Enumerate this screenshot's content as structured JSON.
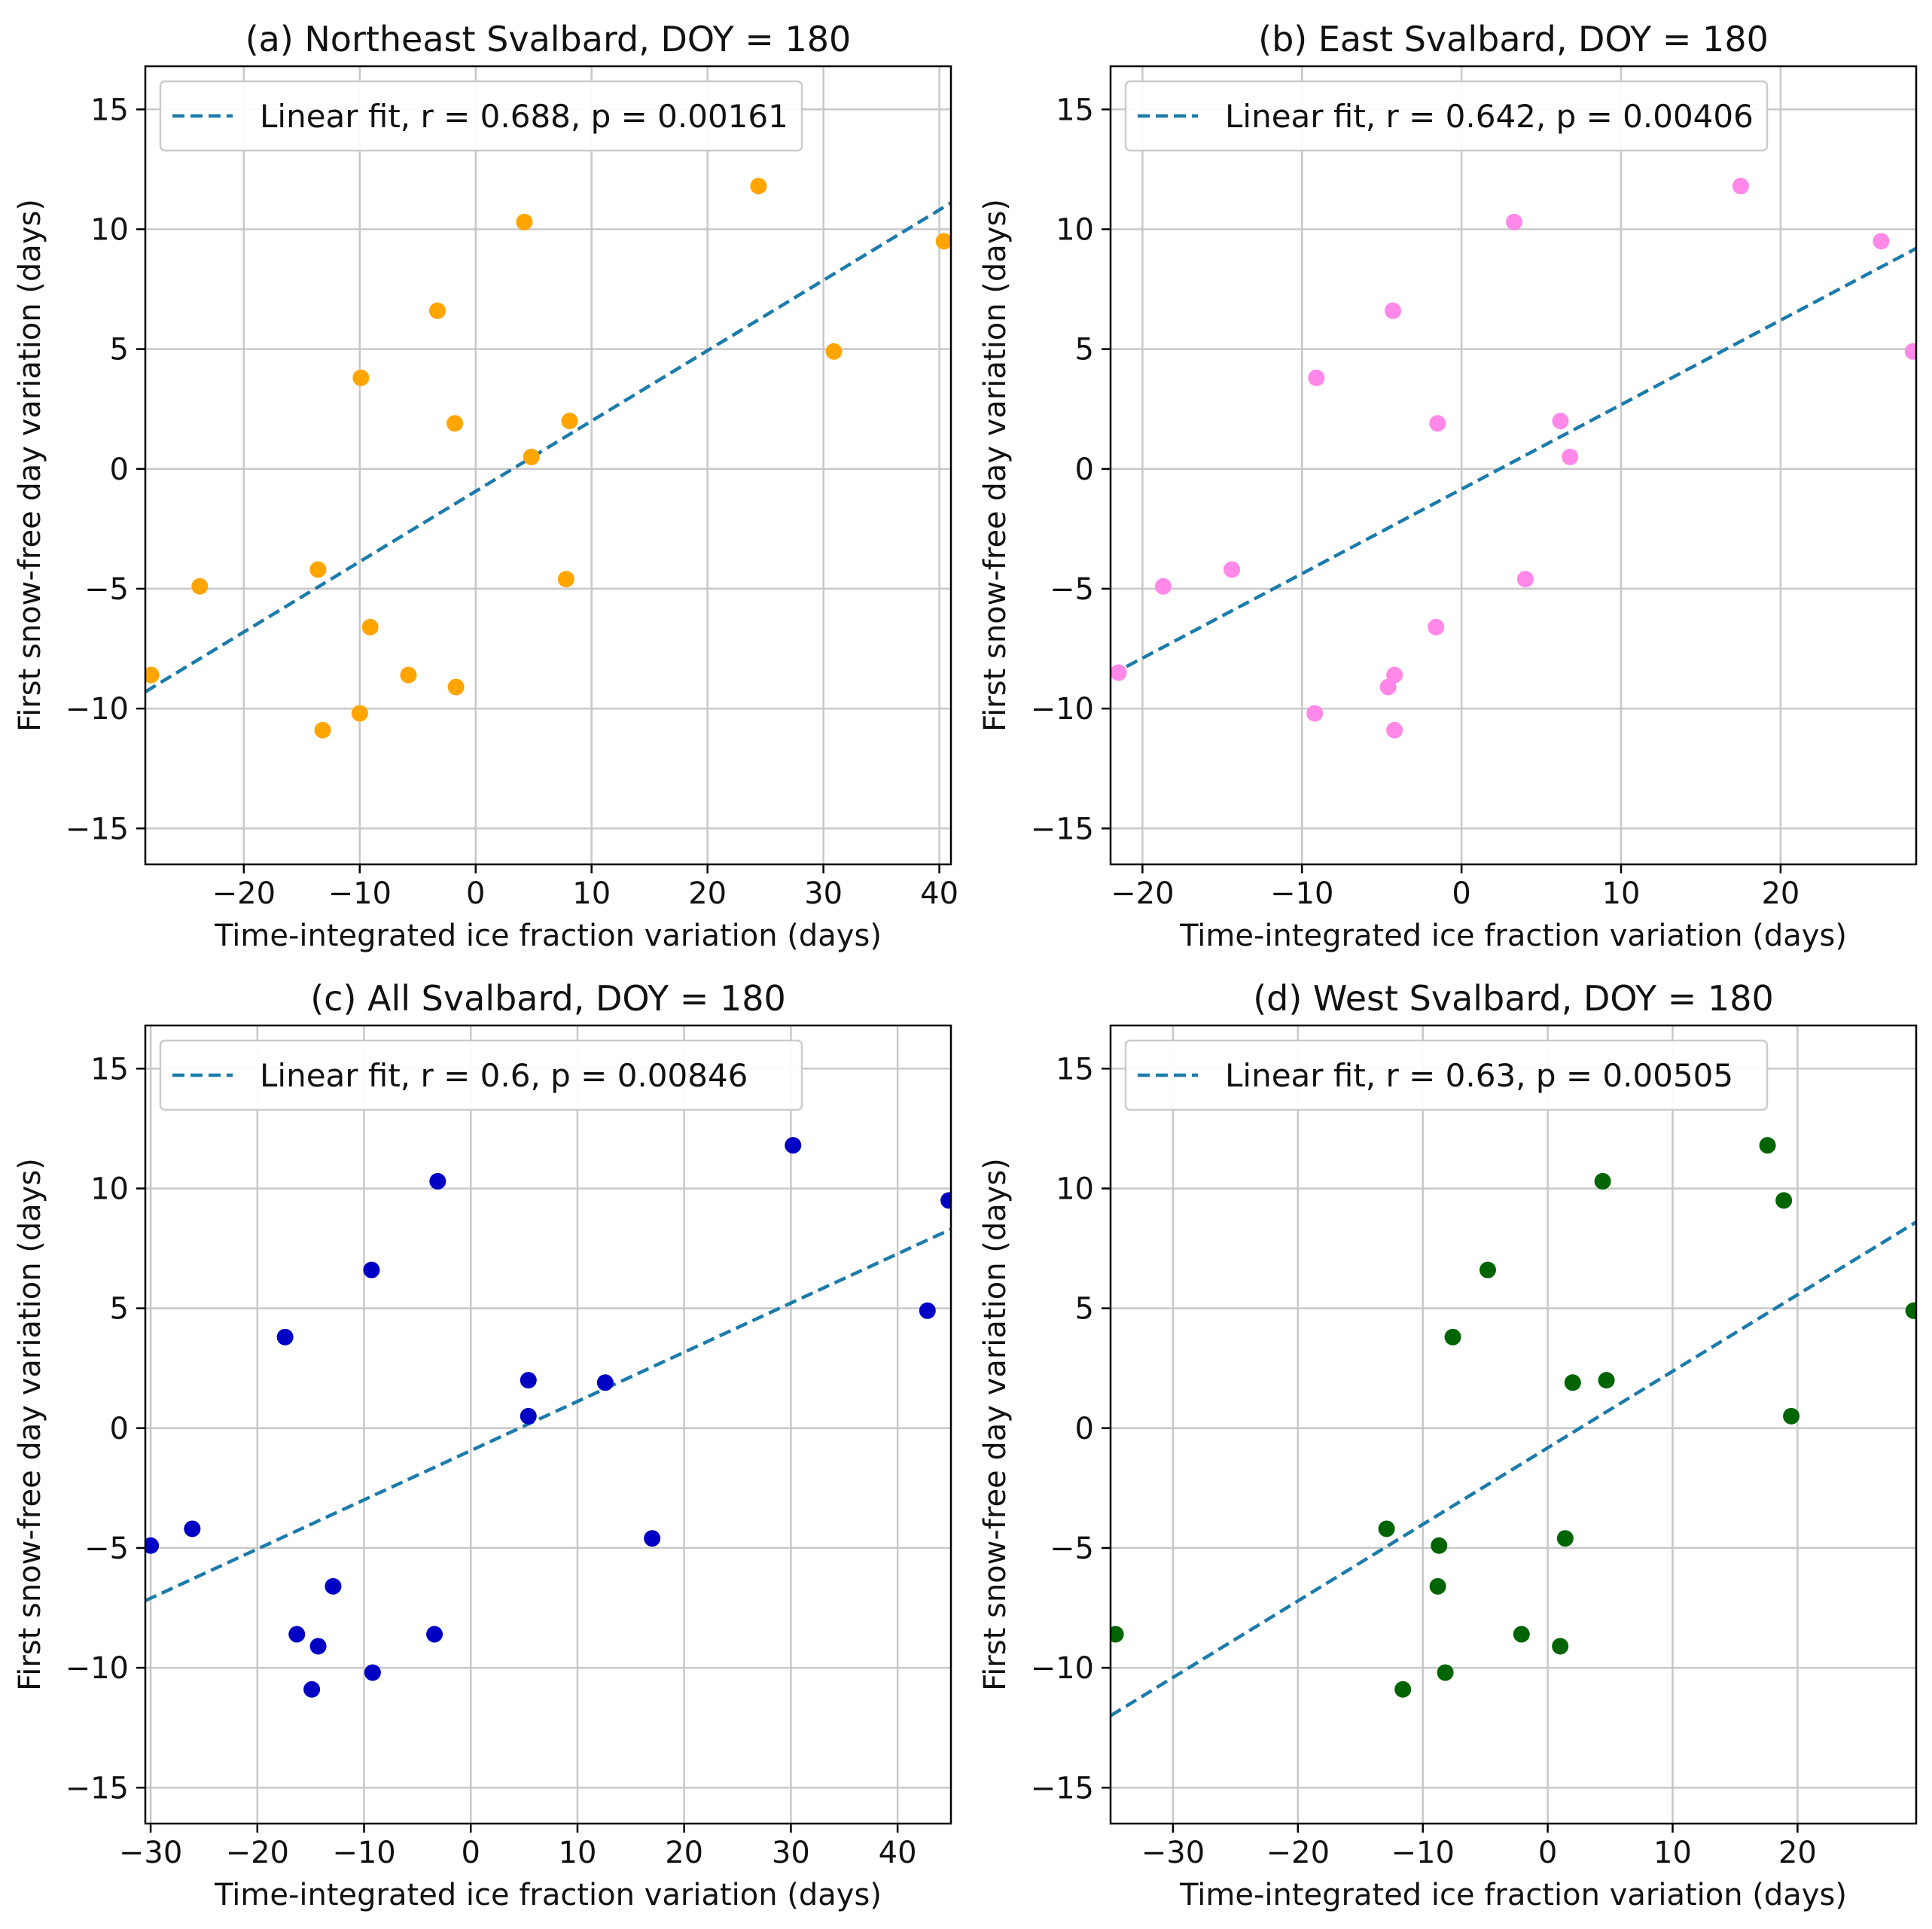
{
  "figure_title": "",
  "chart_data": [
    {
      "type": "scatter",
      "title": "(a) Northeast Svalbard, DOY = 180",
      "xlabel": "Time-integrated ice fraction variation (days)",
      "ylabel": "First snow-free day variation (days)",
      "xlim": [
        -28.5,
        41
      ],
      "ylim": [
        -16.5,
        16.8
      ],
      "xticks": [
        -20,
        -10,
        0,
        10,
        20,
        30,
        40
      ],
      "yticks": [
        -15,
        -10,
        -5,
        0,
        5,
        10,
        15
      ],
      "xtick_labels": [
        "−20",
        "−10",
        "0",
        "10",
        "20",
        "30",
        "40"
      ],
      "ytick_labels": [
        "−15",
        "−10",
        "−5",
        "0",
        "5",
        "10",
        "15"
      ],
      "grid": true,
      "legend_position": "top-left",
      "legend_label": "Linear fit, r = 0.688, p = 0.00161",
      "point_color": "#ffa500",
      "fit_color": "#1b7bab",
      "fit_line": {
        "x": [
          -28.5,
          41
        ],
        "y": [
          -9.3,
          11.1
        ]
      },
      "points": [
        {
          "x": -28.0,
          "y": -8.6
        },
        {
          "x": -23.8,
          "y": -4.9
        },
        {
          "x": -13.6,
          "y": -4.2
        },
        {
          "x": -13.2,
          "y": -10.9
        },
        {
          "x": -10.0,
          "y": -10.2
        },
        {
          "x": -9.9,
          "y": 3.8
        },
        {
          "x": -9.1,
          "y": -6.6
        },
        {
          "x": -5.8,
          "y": -8.6
        },
        {
          "x": -3.3,
          "y": 6.6
        },
        {
          "x": -1.8,
          "y": 1.9
        },
        {
          "x": -1.7,
          "y": -9.1
        },
        {
          "x": 4.2,
          "y": 10.3
        },
        {
          "x": 4.8,
          "y": 0.5
        },
        {
          "x": 7.8,
          "y": -4.6
        },
        {
          "x": 8.1,
          "y": 2.0
        },
        {
          "x": 24.4,
          "y": 11.8
        },
        {
          "x": 30.9,
          "y": 4.9
        },
        {
          "x": 40.4,
          "y": 9.5
        }
      ]
    },
    {
      "type": "scatter",
      "title": "(b) East Svalbard, DOY = 180",
      "xlabel": "Time-integrated ice fraction variation (days)",
      "ylabel": "First snow-free day variation (days)",
      "xlim": [
        -22,
        28.5
      ],
      "ylim": [
        -16.5,
        16.8
      ],
      "xticks": [
        -20,
        -10,
        0,
        10,
        20
      ],
      "yticks": [
        -15,
        -10,
        -5,
        0,
        5,
        10,
        15
      ],
      "xtick_labels": [
        "−20",
        "−10",
        "0",
        "10",
        "20"
      ],
      "ytick_labels": [
        "−15",
        "−10",
        "−5",
        "0",
        "5",
        "10",
        "15"
      ],
      "grid": true,
      "legend_position": "top-left",
      "legend_label": "Linear fit, r = 0.642, p = 0.00406",
      "point_color": "#ff88e8",
      "fit_color": "#1b7bab",
      "fit_line": {
        "x": [
          -22,
          28.5
        ],
        "y": [
          -8.6,
          9.2
        ]
      },
      "points": [
        {
          "x": -21.5,
          "y": -8.5
        },
        {
          "x": -18.7,
          "y": -4.9
        },
        {
          "x": -14.4,
          "y": -4.2
        },
        {
          "x": -9.1,
          "y": 3.8
        },
        {
          "x": -9.2,
          "y": -10.2
        },
        {
          "x": -4.6,
          "y": -9.1
        },
        {
          "x": -4.3,
          "y": 6.6
        },
        {
          "x": -4.2,
          "y": -8.6
        },
        {
          "x": -4.2,
          "y": -10.9
        },
        {
          "x": -1.5,
          "y": 1.9
        },
        {
          "x": -1.6,
          "y": -6.6
        },
        {
          "x": 3.3,
          "y": 10.3
        },
        {
          "x": 4.0,
          "y": -4.6
        },
        {
          "x": 6.2,
          "y": 2.0
        },
        {
          "x": 6.8,
          "y": 0.5
        },
        {
          "x": 17.5,
          "y": 11.8
        },
        {
          "x": 26.3,
          "y": 9.5
        },
        {
          "x": 28.3,
          "y": 4.9
        }
      ]
    },
    {
      "type": "scatter",
      "title": "(c) All Svalbard, DOY = 180",
      "xlabel": "Time-integrated ice fraction variation (days)",
      "ylabel": "First snow-free day variation (days)",
      "xlim": [
        -30.5,
        45
      ],
      "ylim": [
        -16.5,
        16.8
      ],
      "xticks": [
        -30,
        -20,
        -10,
        0,
        10,
        20,
        30,
        40
      ],
      "yticks": [
        -15,
        -10,
        -5,
        0,
        5,
        10,
        15
      ],
      "xtick_labels": [
        "−30",
        "−20",
        "−10",
        "0",
        "10",
        "20",
        "30",
        "40"
      ],
      "ytick_labels": [
        "−15",
        "−10",
        "−5",
        "0",
        "5",
        "10",
        "15"
      ],
      "grid": true,
      "legend_position": "top-left",
      "legend_label": "Linear fit, r = 0.6, p = 0.00846",
      "point_color": "#0000c4",
      "fit_color": "#1b7bab",
      "fit_line": {
        "x": [
          -30.5,
          45
        ],
        "y": [
          -7.2,
          8.3
        ]
      },
      "points": [
        {
          "x": -30.0,
          "y": -4.9
        },
        {
          "x": -26.1,
          "y": -4.2
        },
        {
          "x": -17.4,
          "y": 3.8
        },
        {
          "x": -16.3,
          "y": -8.6
        },
        {
          "x": -14.3,
          "y": -9.1
        },
        {
          "x": -14.9,
          "y": -10.9
        },
        {
          "x": -12.9,
          "y": -6.6
        },
        {
          "x": -9.3,
          "y": 6.6
        },
        {
          "x": -9.2,
          "y": -10.2
        },
        {
          "x": -3.4,
          "y": -8.6
        },
        {
          "x": -3.1,
          "y": 10.3
        },
        {
          "x": 5.4,
          "y": 2.0
        },
        {
          "x": 5.4,
          "y": 0.5
        },
        {
          "x": 12.6,
          "y": 1.9
        },
        {
          "x": 17.0,
          "y": -4.6
        },
        {
          "x": 30.2,
          "y": 11.8
        },
        {
          "x": 42.8,
          "y": 4.9
        },
        {
          "x": 44.8,
          "y": 9.5
        }
      ]
    },
    {
      "type": "scatter",
      "title": "(d) West Svalbard, DOY = 180",
      "xlabel": "Time-integrated ice fraction variation (days)",
      "ylabel": "First snow-free day variation (days)",
      "xlim": [
        -35,
        29.5
      ],
      "ylim": [
        -16.5,
        16.8
      ],
      "xticks": [
        -30,
        -20,
        -10,
        0,
        10,
        20
      ],
      "yticks": [
        -15,
        -10,
        -5,
        0,
        5,
        10,
        15
      ],
      "xtick_labels": [
        "−30",
        "−20",
        "−10",
        "0",
        "10",
        "20"
      ],
      "ytick_labels": [
        "−15",
        "−10",
        "−5",
        "0",
        "5",
        "10",
        "15"
      ],
      "grid": true,
      "legend_position": "top-left",
      "legend_label": "Linear fit, r = 0.63, p = 0.00505",
      "point_color": "#006400",
      "fit_color": "#1b7bab",
      "fit_line": {
        "x": [
          -35,
          29.5
        ],
        "y": [
          -12.0,
          8.6
        ]
      },
      "points": [
        {
          "x": -34.6,
          "y": -8.6
        },
        {
          "x": -12.9,
          "y": -4.2
        },
        {
          "x": -11.6,
          "y": -10.9
        },
        {
          "x": -8.7,
          "y": -4.9
        },
        {
          "x": -8.8,
          "y": -6.6
        },
        {
          "x": -8.2,
          "y": -10.2
        },
        {
          "x": -7.6,
          "y": 3.8
        },
        {
          "x": -4.8,
          "y": 6.6
        },
        {
          "x": -2.1,
          "y": -8.6
        },
        {
          "x": 1.0,
          "y": -9.1
        },
        {
          "x": 1.4,
          "y": -4.6
        },
        {
          "x": 2.0,
          "y": 1.9
        },
        {
          "x": 4.4,
          "y": 10.3
        },
        {
          "x": 4.7,
          "y": 2.0
        },
        {
          "x": 17.6,
          "y": 11.8
        },
        {
          "x": 18.9,
          "y": 9.5
        },
        {
          "x": 19.5,
          "y": 0.5
        },
        {
          "x": 29.3,
          "y": 4.9
        }
      ]
    }
  ]
}
